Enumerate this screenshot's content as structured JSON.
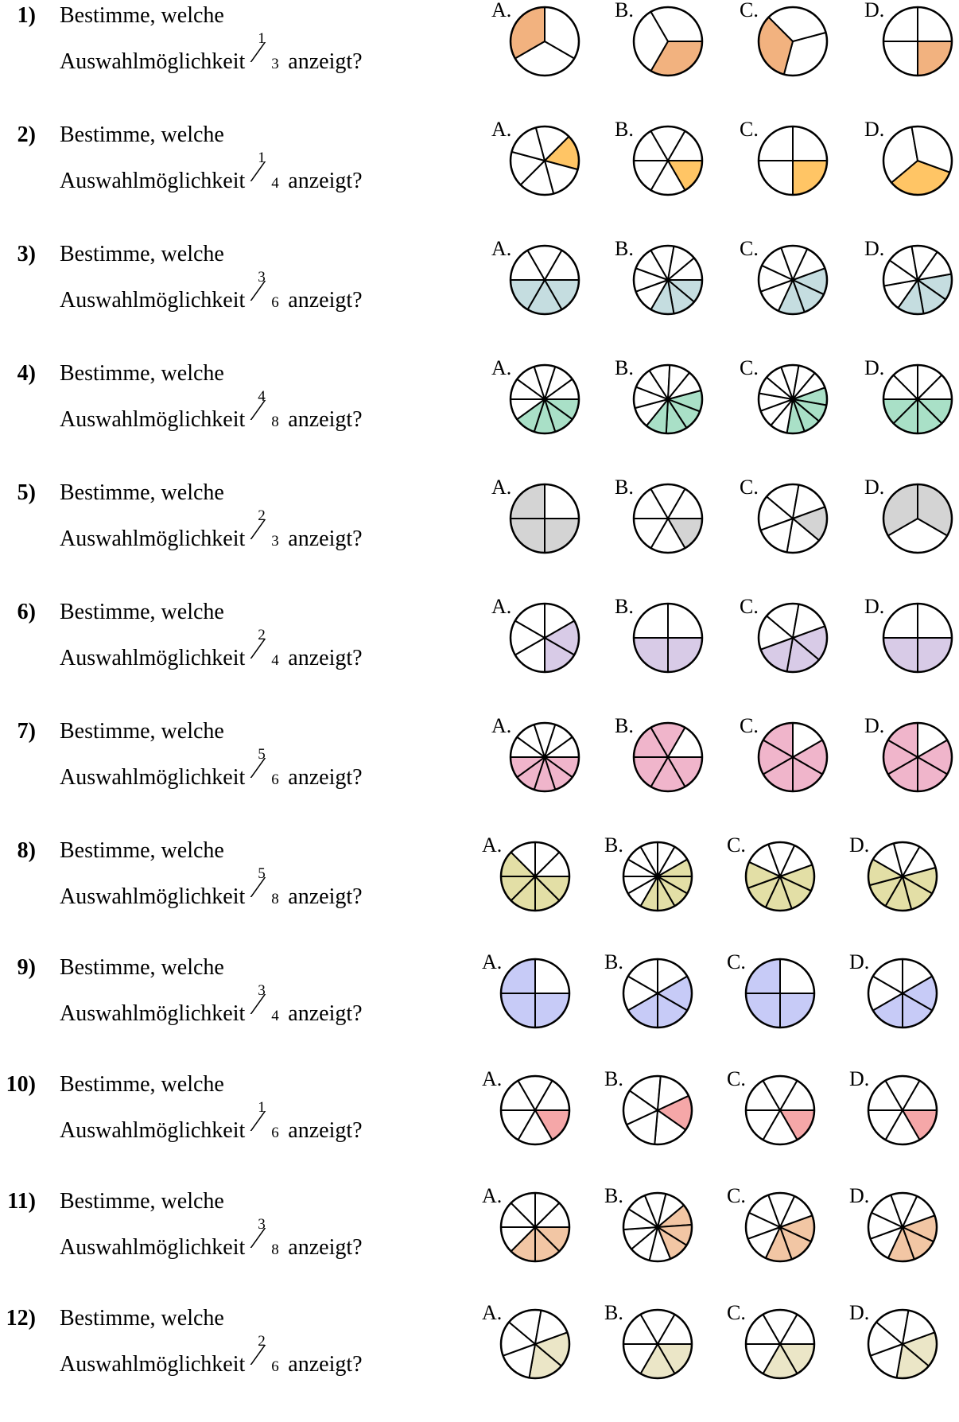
{
  "question_text": "Bestimme, welche",
  "second_line_word": "Auswahlmöglichkeit",
  "suffix_text": "anzeigt?",
  "questions": [
    {
      "number": "1)",
      "numerator": "1",
      "denominator": "3",
      "color": "#f2b27f",
      "options": [
        {
          "label": "A.",
          "n": 3,
          "start": 30,
          "filled": [
            1
          ]
        },
        {
          "label": "B.",
          "n": 3,
          "start": 0,
          "filled": [
            0
          ]
        },
        {
          "label": "C.",
          "n": 3,
          "start": -15,
          "filled": [
            1
          ]
        },
        {
          "label": "D.",
          "n": 4,
          "start": 0,
          "filled": [
            0
          ]
        }
      ]
    },
    {
      "number": "2)",
      "numerator": "1",
      "denominator": "4",
      "color": "#ffc565",
      "options": [
        {
          "label": "A.",
          "n": 6,
          "start": -45,
          "filled": [
            0
          ]
        },
        {
          "label": "B.",
          "n": 6,
          "start": 0,
          "filled": [
            0
          ]
        },
        {
          "label": "C.",
          "n": 4,
          "start": 0,
          "filled": [
            0
          ]
        },
        {
          "label": "D.",
          "n": 3,
          "start": 20,
          "filled": [
            0
          ]
        }
      ]
    },
    {
      "number": "3)",
      "numerator": "3",
      "denominator": "6",
      "color": "#c5dde0",
      "options": [
        {
          "label": "A.",
          "n": 6,
          "start": 0,
          "filled": [
            0,
            1,
            2
          ]
        },
        {
          "label": "B.",
          "n": 9,
          "start": 0,
          "filled": [
            0,
            1,
            2
          ]
        },
        {
          "label": "C.",
          "n": 8,
          "start": -20,
          "filled": [
            0,
            1,
            2
          ]
        },
        {
          "label": "D.",
          "n": 8,
          "start": -10,
          "filled": [
            0,
            1,
            2
          ]
        }
      ]
    },
    {
      "number": "4)",
      "numerator": "4",
      "denominator": "8",
      "color": "#a9e0c7",
      "options": [
        {
          "label": "A.",
          "n": 10,
          "start": 0,
          "filled": [
            0,
            1,
            2,
            3
          ]
        },
        {
          "label": "B.",
          "n": 10,
          "start": -15,
          "filled": [
            0,
            1,
            2,
            3
          ]
        },
        {
          "label": "C.",
          "n": 12,
          "start": -20,
          "filled": [
            0,
            1,
            2,
            3
          ]
        },
        {
          "label": "D.",
          "n": 8,
          "start": 0,
          "filled": [
            0,
            1,
            2,
            3
          ]
        }
      ]
    },
    {
      "number": "5)",
      "numerator": "2",
      "denominator": "3",
      "color": "#d4d4d4",
      "options": [
        {
          "label": "A.",
          "n": 4,
          "start": 0,
          "filled": [
            0,
            1,
            2
          ]
        },
        {
          "label": "B.",
          "n": 6,
          "start": 0,
          "filled": [
            0
          ]
        },
        {
          "label": "C.",
          "n": 6,
          "start": -20,
          "filled": [
            0
          ]
        },
        {
          "label": "D.",
          "n": 3,
          "start": 30,
          "filled": [
            1,
            2
          ]
        }
      ]
    },
    {
      "number": "6)",
      "numerator": "2",
      "denominator": "4",
      "color": "#d8cbe7",
      "options": [
        {
          "label": "A.",
          "n": 6,
          "start": -30,
          "filled": [
            0,
            1
          ]
        },
        {
          "label": "B.",
          "n": 4,
          "start": 0,
          "filled": [
            0,
            1
          ]
        },
        {
          "label": "C.",
          "n": 6,
          "start": -20,
          "filled": [
            0,
            1,
            2
          ]
        },
        {
          "label": "D.",
          "n": 4,
          "start": 0,
          "filled": [
            0,
            1
          ]
        }
      ]
    },
    {
      "number": "7)",
      "numerator": "5",
      "denominator": "6",
      "color": "#f0b5cb",
      "options": [
        {
          "label": "A.",
          "n": 10,
          "start": 0,
          "filled": [
            0,
            1,
            2,
            3,
            4
          ]
        },
        {
          "label": "B.",
          "n": 6,
          "start": 0,
          "filled": [
            0,
            1,
            2,
            3,
            4
          ]
        },
        {
          "label": "C.",
          "n": 6,
          "start": -30,
          "filled": [
            0,
            1,
            2,
            3,
            4
          ]
        },
        {
          "label": "D.",
          "n": 6,
          "start": -30,
          "filled": [
            0,
            1,
            2,
            3,
            4
          ]
        }
      ]
    },
    {
      "number": "8)",
      "numerator": "5",
      "denominator": "8",
      "color": "#e3dfa6",
      "options": [
        {
          "label": "A.",
          "n": 8,
          "start": 0,
          "filled": [
            0,
            1,
            2,
            3,
            4
          ]
        },
        {
          "label": "B.",
          "n": 12,
          "start": -30,
          "filled": [
            0,
            1,
            2,
            3,
            4
          ]
        },
        {
          "label": "C.",
          "n": 8,
          "start": -20,
          "filled": [
            0,
            1,
            2,
            3,
            4
          ]
        },
        {
          "label": "D.",
          "n": 8,
          "start": -15,
          "filled": [
            0,
            1,
            2,
            3,
            4
          ]
        }
      ]
    },
    {
      "number": "9)",
      "numerator": "3",
      "denominator": "4",
      "color": "#c7cbf7",
      "options": [
        {
          "label": "A.",
          "n": 4,
          "start": 0,
          "filled": [
            0,
            1,
            2
          ]
        },
        {
          "label": "B.",
          "n": 6,
          "start": -30,
          "filled": [
            0,
            1,
            2
          ]
        },
        {
          "label": "C.",
          "n": 4,
          "start": 0,
          "filled": [
            0,
            1,
            2
          ]
        },
        {
          "label": "D.",
          "n": 6,
          "start": -30,
          "filled": [
            0,
            1,
            2
          ]
        }
      ]
    },
    {
      "number": "10)",
      "numerator": "1",
      "denominator": "6",
      "color": "#f5a7a8",
      "options": [
        {
          "label": "A.",
          "n": 6,
          "start": 0,
          "filled": [
            0
          ]
        },
        {
          "label": "B.",
          "n": 6,
          "start": -25,
          "filled": [
            0
          ]
        },
        {
          "label": "C.",
          "n": 6,
          "start": 0,
          "filled": [
            0
          ]
        },
        {
          "label": "D.",
          "n": 6,
          "start": 0,
          "filled": [
            0
          ]
        }
      ]
    },
    {
      "number": "11)",
      "numerator": "3",
      "denominator": "8",
      "color": "#f2c6a4",
      "options": [
        {
          "label": "A.",
          "n": 8,
          "start": 0,
          "filled": [
            0,
            1,
            2
          ]
        },
        {
          "label": "B.",
          "n": 10,
          "start": -40,
          "filled": [
            0,
            1,
            2
          ]
        },
        {
          "label": "C.",
          "n": 8,
          "start": -20,
          "filled": [
            0,
            1,
            2
          ]
        },
        {
          "label": "D.",
          "n": 8,
          "start": -20,
          "filled": [
            0,
            1,
            2
          ]
        }
      ]
    },
    {
      "number": "12)",
      "numerator": "2",
      "denominator": "6",
      "color": "#ebe6c7",
      "options": [
        {
          "label": "A.",
          "n": 6,
          "start": -20,
          "filled": [
            0,
            1
          ]
        },
        {
          "label": "B.",
          "n": 6,
          "start": 0,
          "filled": [
            0,
            1
          ]
        },
        {
          "label": "C.",
          "n": 6,
          "start": 0,
          "filled": [
            0,
            1
          ]
        },
        {
          "label": "D.",
          "n": 6,
          "start": -20,
          "filled": [
            0,
            1
          ]
        }
      ]
    }
  ]
}
